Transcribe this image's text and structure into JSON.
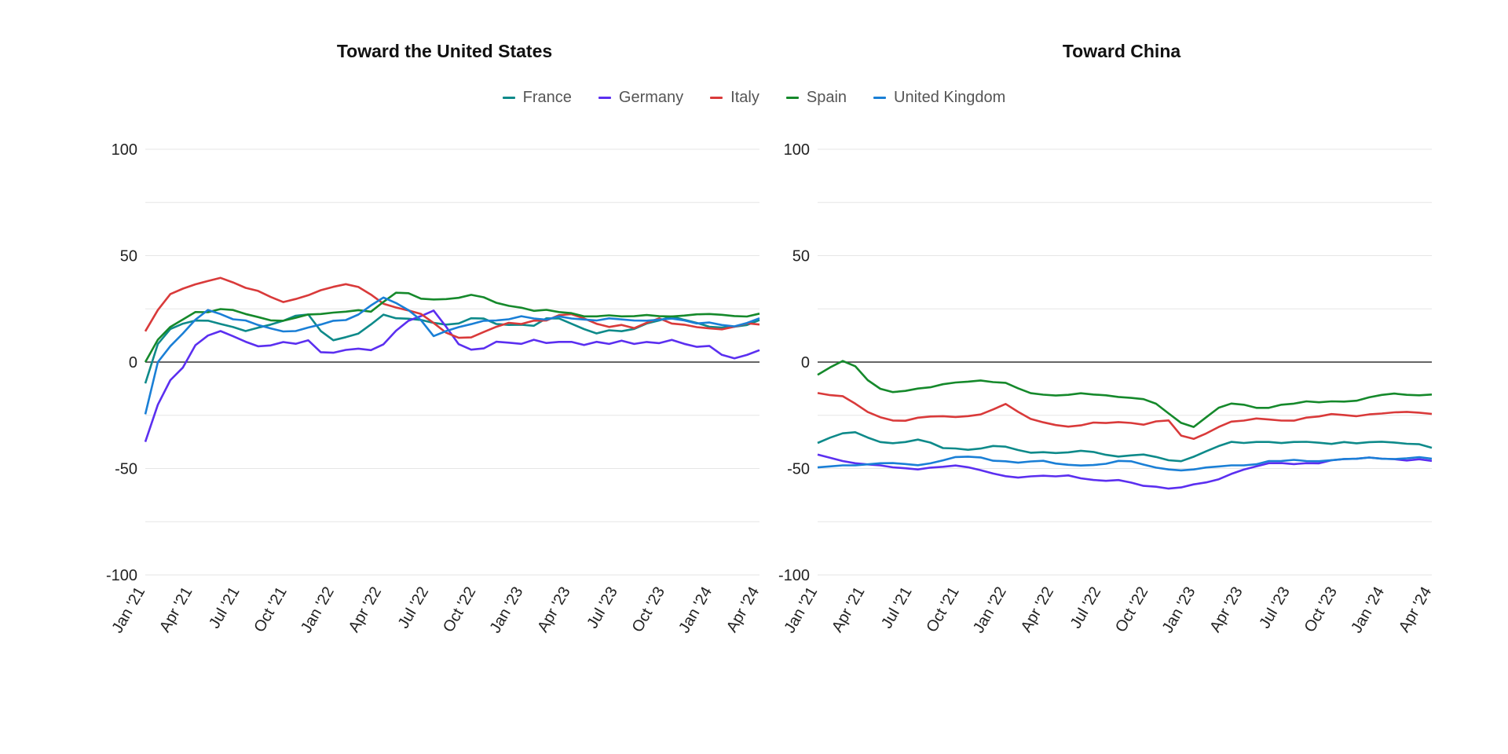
{
  "legend": [
    {
      "name": "France",
      "color": "#0e8a8a"
    },
    {
      "name": "Germany",
      "color": "#5b2ff0"
    },
    {
      "name": "Italy",
      "color": "#d93a3a"
    },
    {
      "name": "Spain",
      "color": "#15892b"
    },
    {
      "name": "United Kingdom",
      "color": "#1a7fd6"
    }
  ],
  "chart_data": [
    {
      "type": "line",
      "title": "Toward the United States",
      "xlabel": "",
      "ylabel": "",
      "ylim": [
        -100,
        100
      ],
      "yticks": [
        100,
        50,
        0,
        -50,
        -100
      ],
      "x_tick_labels": [
        "Jan '21",
        "Apr '21",
        "Jul '21",
        "Oct '21",
        "Jan '22",
        "Apr '22",
        "Jul '22",
        "Oct '22",
        "Jan '23",
        "Apr '23",
        "Jul '23",
        "Oct '23",
        "Jan '24",
        "Apr '24"
      ],
      "grid": true,
      "legend_position": "top-center",
      "series": [
        {
          "name": "France",
          "color": "#0e8a8a",
          "values": [
            -10,
            8,
            15,
            18,
            20,
            20,
            18,
            16,
            14,
            16,
            18,
            20,
            22,
            22,
            14,
            10,
            12,
            14,
            18,
            22,
            20,
            20,
            20,
            19,
            18,
            18,
            20,
            20,
            18,
            18,
            18,
            17,
            20,
            20,
            18,
            16,
            14,
            15,
            14,
            15,
            18,
            20,
            22,
            20,
            18,
            16,
            16,
            17,
            18,
            20
          ]
        },
        {
          "name": "Germany",
          "color": "#5b2ff0",
          "values": [
            -38,
            -20,
            -8,
            -2,
            8,
            12,
            14,
            12,
            10,
            8,
            8,
            9,
            8,
            10,
            5,
            5,
            6,
            6,
            5,
            8,
            15,
            20,
            22,
            24,
            16,
            8,
            6,
            7,
            10,
            9,
            8,
            10,
            9,
            10,
            10,
            8,
            9,
            8,
            10,
            9,
            10,
            9,
            10,
            8,
            7,
            8,
            4,
            2,
            3,
            5
          ]
        },
        {
          "name": "Italy",
          "color": "#d93a3a",
          "values": [
            15,
            25,
            32,
            34,
            36,
            38,
            40,
            38,
            35,
            33,
            30,
            28,
            30,
            32,
            34,
            35,
            36,
            35,
            32,
            28,
            26,
            24,
            22,
            18,
            14,
            12,
            12,
            14,
            16,
            18,
            18,
            20,
            20,
            22,
            22,
            20,
            18,
            17,
            18,
            16,
            18,
            20,
            18,
            18,
            17,
            16,
            15,
            16,
            18,
            18
          ]
        },
        {
          "name": "Spain",
          "color": "#15892b",
          "values": [
            0,
            10,
            16,
            20,
            24,
            24,
            25,
            24,
            22,
            21,
            20,
            20,
            21,
            22,
            22,
            23,
            24,
            25,
            24,
            28,
            32,
            32,
            30,
            30,
            30,
            30,
            31,
            30,
            28,
            27,
            26,
            24,
            24,
            23,
            23,
            22,
            22,
            22,
            21,
            21,
            22,
            22,
            22,
            22,
            22,
            22,
            22,
            22,
            22,
            23
          ]
        },
        {
          "name": "United Kingdom",
          "color": "#1a7fd6",
          "values": [
            -25,
            0,
            8,
            14,
            20,
            24,
            22,
            20,
            20,
            18,
            16,
            14,
            14,
            16,
            18,
            20,
            20,
            22,
            26,
            30,
            28,
            25,
            20,
            12,
            14,
            16,
            18,
            20,
            20,
            20,
            21,
            20,
            20,
            22,
            21,
            20,
            19,
            20,
            20,
            20,
            20,
            20,
            20,
            19,
            18,
            19,
            18,
            17,
            18,
            20
          ]
        }
      ]
    },
    {
      "type": "line",
      "title": "Toward China",
      "xlabel": "",
      "ylabel": "",
      "ylim": [
        -100,
        100
      ],
      "yticks": [
        100,
        50,
        0,
        -50,
        -100
      ],
      "x_tick_labels": [
        "Jan '21",
        "Apr '21",
        "Jul '21",
        "Oct '21",
        "Jan '22",
        "Apr '22",
        "Jul '22",
        "Oct '22",
        "Jan '23",
        "Apr '23",
        "Jul '23",
        "Oct '23",
        "Jan '24",
        "Apr '24"
      ],
      "grid": true,
      "legend_position": "top-center",
      "series": [
        {
          "name": "France",
          "color": "#0e8a8a",
          "values": [
            -38,
            -36,
            -34,
            -33,
            -35,
            -37,
            -38,
            -38,
            -37,
            -38,
            -40,
            -40,
            -41,
            -41,
            -40,
            -40,
            -41,
            -42,
            -42,
            -43,
            -43,
            -42,
            -42,
            -43,
            -44,
            -44,
            -44,
            -45,
            -46,
            -46,
            -44,
            -42,
            -40,
            -38,
            -38,
            -37,
            -37,
            -38,
            -38,
            -38,
            -38,
            -38,
            -37,
            -38,
            -38,
            -38,
            -38,
            -38,
            -38,
            -40
          ]
        },
        {
          "name": "Germany",
          "color": "#5b2ff0",
          "values": [
            -44,
            -45,
            -46,
            -47,
            -48,
            -49,
            -50,
            -50,
            -50,
            -49,
            -49,
            -49,
            -50,
            -51,
            -52,
            -53,
            -54,
            -54,
            -54,
            -54,
            -53,
            -54,
            -55,
            -56,
            -56,
            -57,
            -58,
            -58,
            -59,
            -59,
            -58,
            -57,
            -55,
            -52,
            -50,
            -49,
            -48,
            -48,
            -48,
            -47,
            -47,
            -46,
            -46,
            -46,
            -45,
            -45,
            -45,
            -46,
            -46,
            -47
          ]
        },
        {
          "name": "Italy",
          "color": "#d93a3a",
          "values": [
            -14,
            -15,
            -16,
            -20,
            -24,
            -26,
            -27,
            -27,
            -26,
            -26,
            -26,
            -26,
            -25,
            -24,
            -22,
            -20,
            -24,
            -27,
            -28,
            -29,
            -30,
            -30,
            -29,
            -29,
            -28,
            -28,
            -29,
            -28,
            -28,
            -35,
            -36,
            -33,
            -30,
            -28,
            -28,
            -27,
            -27,
            -27,
            -27,
            -26,
            -26,
            -25,
            -25,
            -25,
            -24,
            -24,
            -24,
            -24,
            -24,
            -24
          ]
        },
        {
          "name": "Spain",
          "color": "#15892b",
          "values": [
            -6,
            -3,
            0,
            -2,
            -8,
            -12,
            -14,
            -14,
            -13,
            -12,
            -10,
            -9,
            -9,
            -9,
            -10,
            -10,
            -12,
            -14,
            -15,
            -16,
            -16,
            -15,
            -15,
            -15,
            -16,
            -17,
            -18,
            -20,
            -24,
            -28,
            -30,
            -26,
            -22,
            -20,
            -20,
            -21,
            -21,
            -20,
            -20,
            -19,
            -19,
            -18,
            -18,
            -18,
            -17,
            -16,
            -15,
            -15,
            -15,
            -15
          ]
        },
        {
          "name": "United Kingdom",
          "color": "#1a7fd6",
          "values": [
            -50,
            -49,
            -48,
            -48,
            -48,
            -48,
            -48,
            -48,
            -48,
            -47,
            -46,
            -45,
            -45,
            -45,
            -46,
            -46,
            -47,
            -47,
            -47,
            -48,
            -48,
            -48,
            -48,
            -48,
            -47,
            -47,
            -48,
            -49,
            -50,
            -51,
            -51,
            -50,
            -49,
            -48,
            -48,
            -48,
            -47,
            -47,
            -46,
            -46,
            -46,
            -46,
            -46,
            -46,
            -45,
            -45,
            -45,
            -45,
            -45,
            -46
          ]
        }
      ]
    }
  ]
}
